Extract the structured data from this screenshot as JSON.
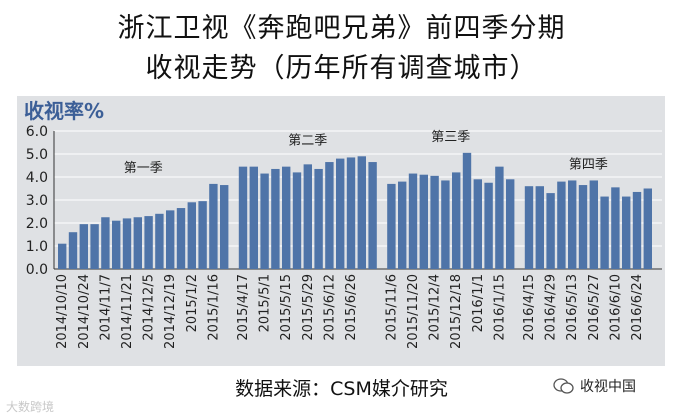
{
  "header": {
    "title_line1": "浙江卫视《奔跑吧兄弟》前四季分期",
    "title_line2": "收视走势（历年所有调查城市）"
  },
  "footer": {
    "source": "数据来源：CSM媒介研究",
    "watermark_left": "大数跨境",
    "watermark_right": "收视中国"
  },
  "chart_data": {
    "type": "bar",
    "ylabel": "收视率%",
    "ylim": [
      0,
      6
    ],
    "yticks": [
      "0.0",
      "1.0",
      "2.0",
      "3.0",
      "4.0",
      "5.0",
      "6.0"
    ],
    "grid": true,
    "colors": {
      "bar": "#4f74a8",
      "plot_bg": "#dfe1e4",
      "ylabel": "#3c5f97"
    },
    "seasons": [
      {
        "name": "第一季",
        "values": [
          1.1,
          1.6,
          1.95,
          1.95,
          2.25,
          2.1,
          2.2,
          2.25,
          2.3,
          2.4,
          2.55,
          2.65,
          2.9,
          2.95,
          3.7,
          3.65
        ],
        "labels": [
          "2014/10/10",
          "",
          "2014/10/24",
          "",
          "2014/11/7",
          "",
          "2014/11/21",
          "",
          "2014/12/5",
          "",
          "2014/12/19",
          "",
          "2015/1/2",
          "",
          "2015/1/16",
          ""
        ]
      },
      {
        "name": "第二季",
        "values": [
          4.45,
          4.45,
          4.15,
          4.35,
          4.45,
          4.2,
          4.55,
          4.35,
          4.65,
          4.8,
          4.85,
          4.9,
          4.65
        ],
        "labels": [
          "2015/4/17",
          "",
          "2015/5/1",
          "",
          "2015/5/15",
          "",
          "2015/5/29",
          "",
          "2015/6/12",
          "",
          "2015/6/26",
          "",
          ""
        ]
      },
      {
        "name": "第三季",
        "values": [
          3.7,
          3.8,
          4.15,
          4.1,
          4.05,
          3.85,
          4.2,
          5.05,
          3.9,
          3.75,
          4.45,
          3.9
        ],
        "labels": [
          "2015/11/6",
          "",
          "2015/11/20",
          "",
          "2015/12/4",
          "",
          "2015/12/18",
          "",
          "2016/1/1",
          "",
          "2016/1/15",
          ""
        ]
      },
      {
        "name": "第四季",
        "values": [
          3.6,
          3.6,
          3.3,
          3.8,
          3.85,
          3.65,
          3.85,
          3.15,
          3.55,
          3.15,
          3.35,
          3.5
        ],
        "labels": [
          "2016/4/15",
          "",
          "2016/4/29",
          "",
          "2016/5/13",
          "",
          "2016/5/27",
          "",
          "2016/6/10",
          "",
          "2016/6/24",
          ""
        ]
      }
    ]
  }
}
